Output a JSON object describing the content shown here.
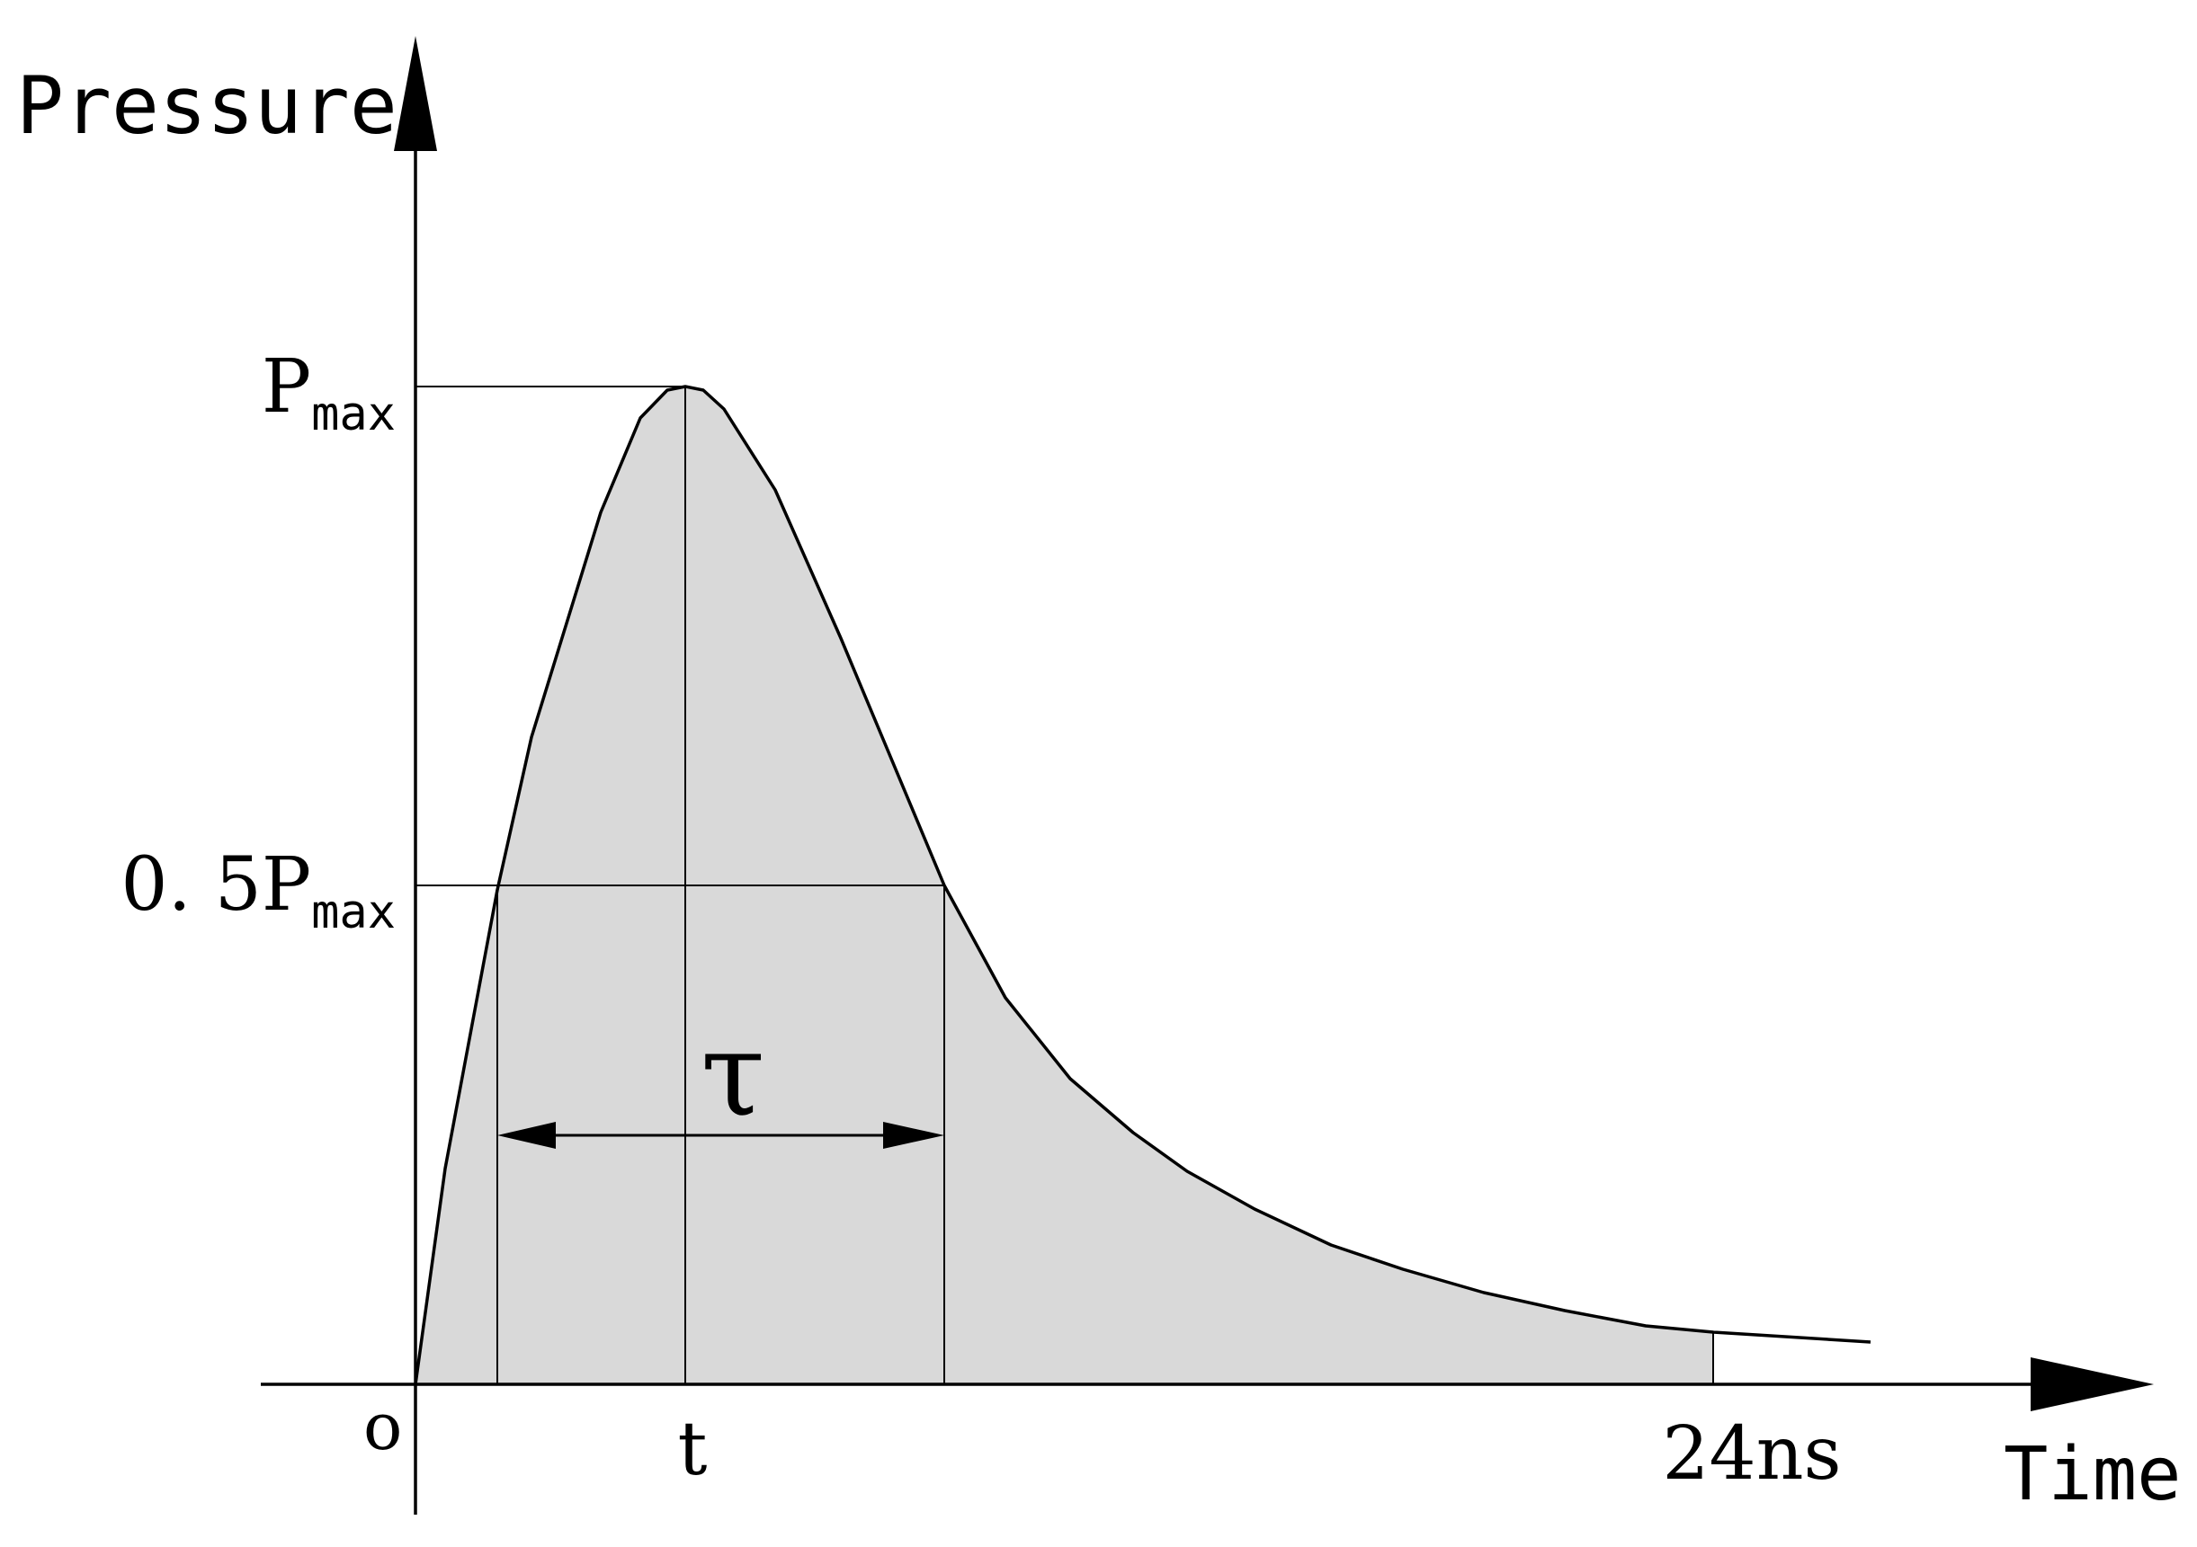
{
  "labels": {
    "y_axis_title": "Pressure",
    "x_axis_title": "Time",
    "origin": "o",
    "pmax_main": "P",
    "pmax_sub": "max",
    "half_pmax_main": "0. 5P",
    "half_pmax_sub": "max",
    "peak_time": "t",
    "end_time": "24ns",
    "pulse_width": "τ"
  },
  "colors": {
    "curve_fill": "#d9d9d9",
    "line": "#000000",
    "background": "#ffffff"
  }
}
